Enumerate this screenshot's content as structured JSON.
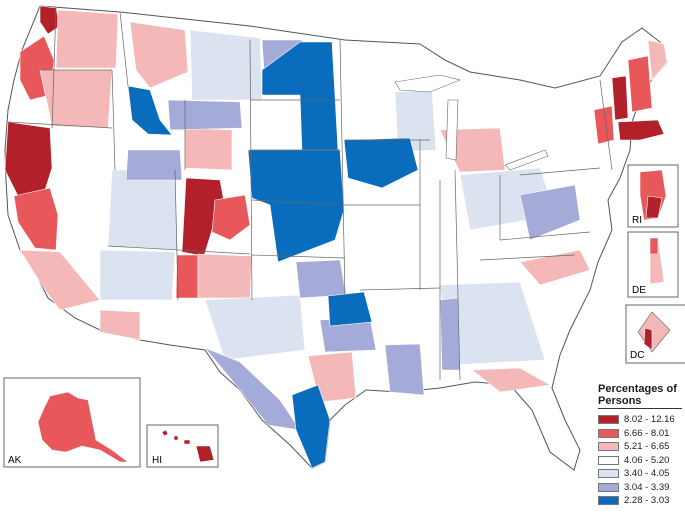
{
  "legend": {
    "title": "Percentages of Persons",
    "items": [
      {
        "label": "8.02 - 12.16",
        "color": "#b2202a"
      },
      {
        "label": "6.66 - 8.01",
        "color": "#e8585a"
      },
      {
        "label": "5.21 - 6.65",
        "color": "#f4b8b8"
      },
      {
        "label": "4.06 - 5.20",
        "color": "#ffffff"
      },
      {
        "label": "3.40 - 4.05",
        "color": "#dce3f0"
      },
      {
        "label": "3.04 - 3.39",
        "color": "#a4abd8"
      },
      {
        "label": "2.28 - 3.03",
        "color": "#0a6cbc"
      }
    ]
  },
  "insets": {
    "ak": "AK",
    "hi": "HI",
    "ri": "RI",
    "de": "DE",
    "dc": "DC"
  }
}
